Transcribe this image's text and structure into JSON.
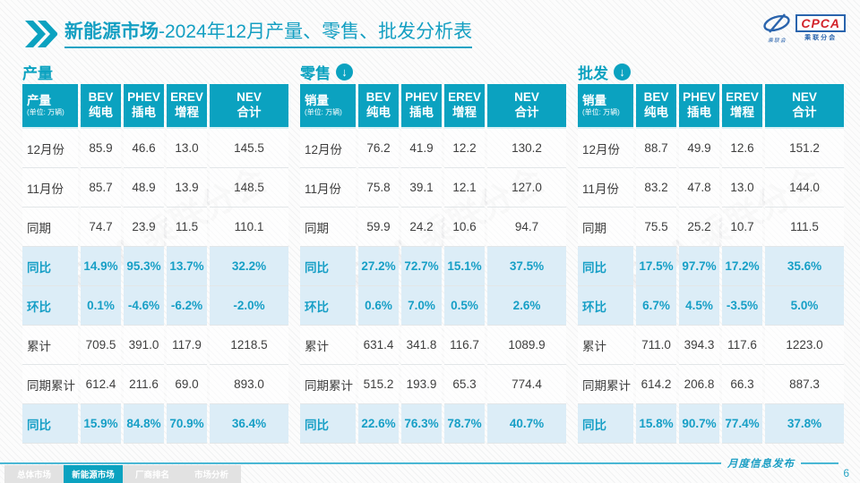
{
  "title": {
    "highlight": "新能源市场",
    "rest": "-2024年12月产量、零售、批发分析表"
  },
  "logo": {
    "acronym": "CPCA",
    "subtitle": "乘联分会",
    "swirl_caption": "乘联会"
  },
  "watermark": "CPCA 乘联分会",
  "colors": {
    "accent_teal": "#0ba2c0",
    "highlight_row_bg": "#dcedf7",
    "highlight_text": "#179fc6",
    "logo_blue": "#2a64ad",
    "logo_red": "#d2232a"
  },
  "tables": [
    {
      "section_label": "产量",
      "has_arrow": false,
      "first_col_header": "产量",
      "unit": "(单位: 万辆)",
      "columns": [
        {
          "en": "BEV",
          "zh": "纯电"
        },
        {
          "en": "PHEV",
          "zh": "插电"
        },
        {
          "en": "EREV",
          "zh": "增程"
        },
        {
          "en": "NEV",
          "zh": "合计"
        }
      ],
      "rows": [
        {
          "label": "12月份",
          "highlight": false,
          "values": [
            "85.9",
            "46.6",
            "13.0",
            "145.5"
          ]
        },
        {
          "label": "11月份",
          "highlight": false,
          "values": [
            "85.7",
            "48.9",
            "13.9",
            "148.5"
          ]
        },
        {
          "label": "同期",
          "highlight": false,
          "values": [
            "74.7",
            "23.9",
            "11.5",
            "110.1"
          ]
        },
        {
          "label": "同比",
          "highlight": true,
          "values": [
            "14.9%",
            "95.3%",
            "13.7%",
            "32.2%"
          ]
        },
        {
          "label": "环比",
          "highlight": true,
          "values": [
            "0.1%",
            "-4.6%",
            "-6.2%",
            "-2.0%"
          ]
        },
        {
          "label": "累计",
          "highlight": false,
          "values": [
            "709.5",
            "391.0",
            "117.9",
            "1218.5"
          ]
        },
        {
          "label": "同期累计",
          "highlight": false,
          "values": [
            "612.4",
            "211.6",
            "69.0",
            "893.0"
          ]
        },
        {
          "label": "同比",
          "highlight": true,
          "values": [
            "15.9%",
            "84.8%",
            "70.9%",
            "36.4%"
          ]
        }
      ]
    },
    {
      "section_label": "零售",
      "has_arrow": true,
      "first_col_header": "销量",
      "unit": "(单位: 万辆)",
      "columns": [
        {
          "en": "BEV",
          "zh": "纯电"
        },
        {
          "en": "PHEV",
          "zh": "插电"
        },
        {
          "en": "EREV",
          "zh": "增程"
        },
        {
          "en": "NEV",
          "zh": "合计"
        }
      ],
      "rows": [
        {
          "label": "12月份",
          "highlight": false,
          "values": [
            "76.2",
            "41.9",
            "12.2",
            "130.2"
          ]
        },
        {
          "label": "11月份",
          "highlight": false,
          "values": [
            "75.8",
            "39.1",
            "12.1",
            "127.0"
          ]
        },
        {
          "label": "同期",
          "highlight": false,
          "values": [
            "59.9",
            "24.2",
            "10.6",
            "94.7"
          ]
        },
        {
          "label": "同比",
          "highlight": true,
          "values": [
            "27.2%",
            "72.7%",
            "15.1%",
            "37.5%"
          ]
        },
        {
          "label": "环比",
          "highlight": true,
          "values": [
            "0.6%",
            "7.0%",
            "0.5%",
            "2.6%"
          ]
        },
        {
          "label": "累计",
          "highlight": false,
          "values": [
            "631.4",
            "341.8",
            "116.7",
            "1089.9"
          ]
        },
        {
          "label": "同期累计",
          "highlight": false,
          "values": [
            "515.2",
            "193.9",
            "65.3",
            "774.4"
          ]
        },
        {
          "label": "同比",
          "highlight": true,
          "values": [
            "22.6%",
            "76.3%",
            "78.7%",
            "40.7%"
          ]
        }
      ]
    },
    {
      "section_label": "批发",
      "has_arrow": true,
      "first_col_header": "销量",
      "unit": "(单位: 万辆)",
      "columns": [
        {
          "en": "BEV",
          "zh": "纯电"
        },
        {
          "en": "PHEV",
          "zh": "插电"
        },
        {
          "en": "EREV",
          "zh": "增程"
        },
        {
          "en": "NEV",
          "zh": "合计"
        }
      ],
      "rows": [
        {
          "label": "12月份",
          "highlight": false,
          "values": [
            "88.7",
            "49.9",
            "12.6",
            "151.2"
          ]
        },
        {
          "label": "11月份",
          "highlight": false,
          "values": [
            "83.2",
            "47.8",
            "13.0",
            "144.0"
          ]
        },
        {
          "label": "同期",
          "highlight": false,
          "values": [
            "75.5",
            "25.2",
            "10.7",
            "111.5"
          ]
        },
        {
          "label": "同比",
          "highlight": true,
          "values": [
            "17.5%",
            "97.7%",
            "17.2%",
            "35.6%"
          ]
        },
        {
          "label": "环比",
          "highlight": true,
          "values": [
            "6.7%",
            "4.5%",
            "-3.5%",
            "5.0%"
          ]
        },
        {
          "label": "累计",
          "highlight": false,
          "values": [
            "711.0",
            "394.3",
            "117.6",
            "1223.0"
          ]
        },
        {
          "label": "同期累计",
          "highlight": false,
          "values": [
            "614.2",
            "206.8",
            "66.3",
            "887.3"
          ]
        },
        {
          "label": "同比",
          "highlight": true,
          "values": [
            "15.8%",
            "90.7%",
            "77.4%",
            "37.8%"
          ]
        }
      ]
    }
  ],
  "footer": {
    "tabs": [
      {
        "label": "总体市场",
        "active": false
      },
      {
        "label": "新能源市场",
        "active": true
      },
      {
        "label": "厂商排名",
        "active": false
      },
      {
        "label": "市场分析",
        "active": false
      }
    ],
    "publish_label": "月度信息发布",
    "page_number": "6"
  }
}
